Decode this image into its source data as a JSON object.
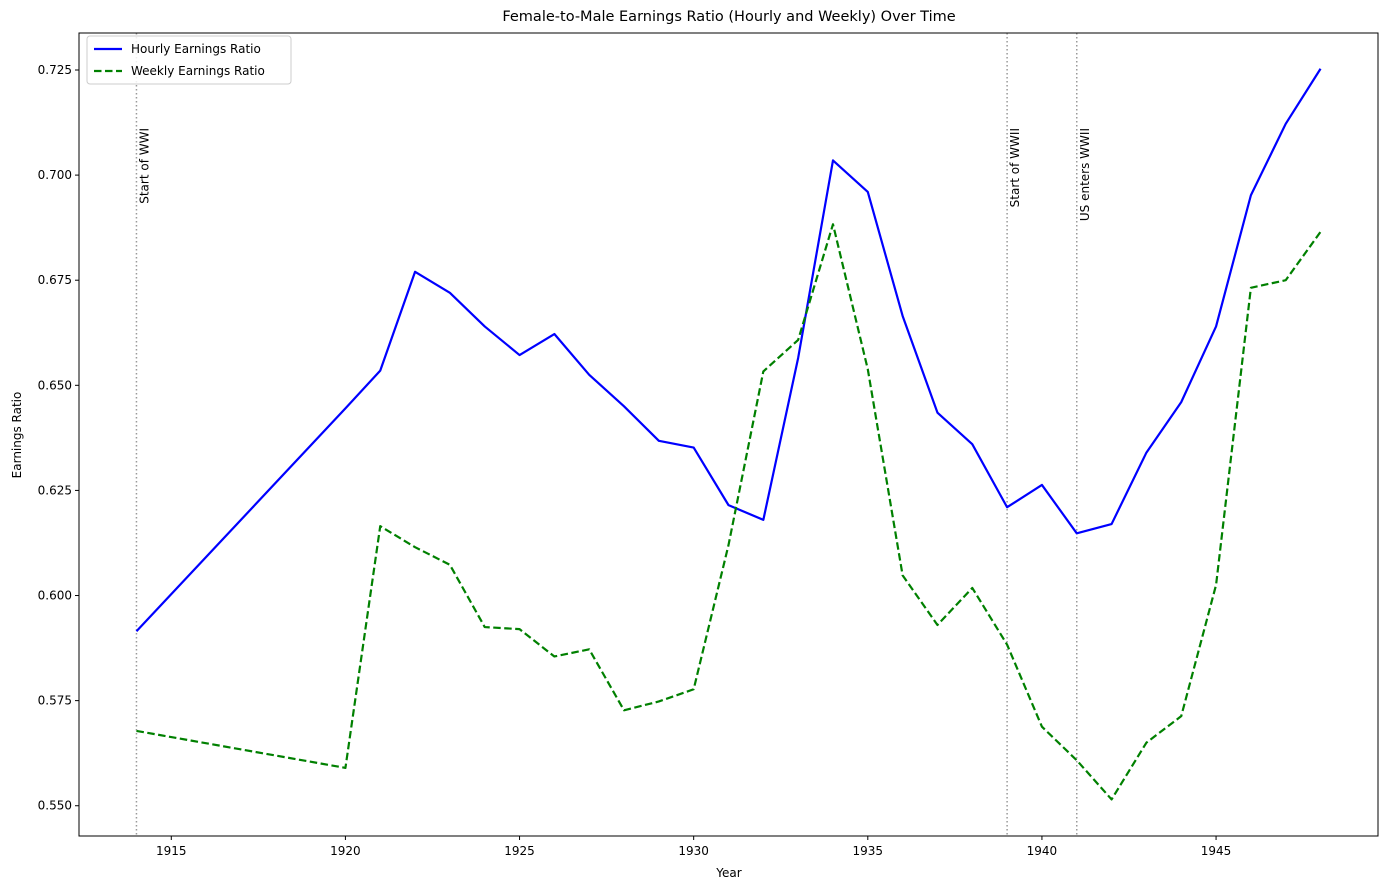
{
  "chart_data": {
    "type": "line",
    "title": "Female-to-Male Earnings Ratio (Hourly and Weekly) Over Time",
    "xlabel": "Year",
    "ylabel": "Earnings Ratio",
    "xlim": [
      1912.35,
      1949.65
    ],
    "ylim": [
      0.5428,
      0.7338
    ],
    "xticks": [
      1915,
      1920,
      1925,
      1930,
      1935,
      1940,
      1945
    ],
    "yticks": [
      0.55,
      0.575,
      0.6,
      0.625,
      0.65,
      0.675,
      0.7,
      0.725
    ],
    "ytick_labels": [
      "0.550",
      "0.575",
      "0.600",
      "0.625",
      "0.650",
      "0.675",
      "0.700",
      "0.725"
    ],
    "grid": false,
    "legend_position": "upper-left",
    "series": [
      {
        "name": "Hourly Earnings Ratio",
        "color": "#0000ff",
        "style": "solid",
        "x": [
          1914,
          1920,
          1921,
          1922,
          1923,
          1924,
          1925,
          1926,
          1927,
          1928,
          1929,
          1930,
          1931,
          1932,
          1933,
          1934,
          1935,
          1936,
          1937,
          1938,
          1939,
          1940,
          1941,
          1942,
          1943,
          1944,
          1945,
          1946,
          1947,
          1948
        ],
        "values": [
          0.5915,
          0.6445,
          0.6535,
          0.677,
          0.672,
          0.664,
          0.6572,
          0.6622,
          0.6525,
          0.645,
          0.6368,
          0.6352,
          0.6215,
          0.618,
          0.6565,
          0.7035,
          0.696,
          0.6665,
          0.6435,
          0.636,
          0.621,
          0.6263,
          0.6148,
          0.617,
          0.634,
          0.646,
          0.664,
          0.6952,
          0.7122,
          0.7253
        ]
      },
      {
        "name": "Weekly Earnings Ratio",
        "color": "#008000",
        "style": "dashed",
        "x": [
          1914,
          1920,
          1921,
          1922,
          1923,
          1924,
          1925,
          1926,
          1927,
          1928,
          1929,
          1930,
          1931,
          1932,
          1933,
          1934,
          1935,
          1936,
          1937,
          1938,
          1939,
          1940,
          1941,
          1942,
          1943,
          1944,
          1945,
          1946,
          1947,
          1948
        ],
        "values": [
          0.5678,
          0.559,
          0.6165,
          0.6115,
          0.6073,
          0.5925,
          0.592,
          0.5855,
          0.5872,
          0.5727,
          0.5748,
          0.5777,
          0.612,
          0.6533,
          0.6608,
          0.6883,
          0.6538,
          0.6048,
          0.593,
          0.6018,
          0.5883,
          0.5688,
          0.5608,
          0.5515,
          0.565,
          0.5713,
          0.6025,
          0.6732,
          0.675,
          0.6865
        ]
      }
    ],
    "events": [
      {
        "x": 1914,
        "label": "Start of WWI"
      },
      {
        "x": 1939,
        "label": "Start of WWII"
      },
      {
        "x": 1941,
        "label": "US enters WWII"
      }
    ]
  }
}
